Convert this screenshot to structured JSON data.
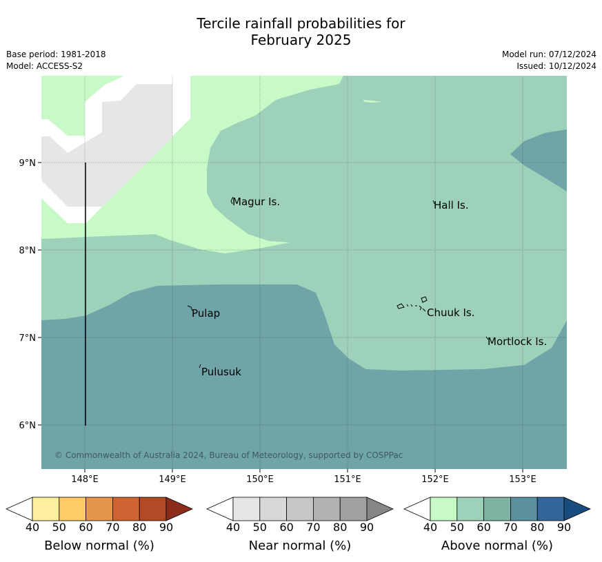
{
  "header": {
    "title_line1": "Tercile rainfall probabilities for",
    "title_line2": "February 2025",
    "base_period": "Base period: 1981-2018",
    "model": "Model: ACCESS-S2",
    "model_run": "Model run: 07/12/2024",
    "issued": "Issued: 10/12/2024"
  },
  "map": {
    "lat_labels": [
      "9°N",
      "8°N",
      "7°N",
      "6°N"
    ],
    "lon_labels": [
      "148°E",
      "149°E",
      "150°E",
      "151°E",
      "152°E",
      "153°E"
    ],
    "places": [
      "Magur Is.",
      "Hall Is.",
      "Pulap",
      "Chuuk Is.",
      "Mortlock Is.",
      "Pulusuk"
    ],
    "copyright": "© Commonwealth of Australia 2024, Bureau of Meteorology, supported by COSPPac",
    "colors": {
      "near_normal_40": "#e6e6e6",
      "above_normal_40": "#c8fac8",
      "above_normal_50": "#9dd1b9",
      "above_normal_70": "#6fa4a8"
    }
  },
  "colorbars": [
    {
      "label": "Below normal (%)",
      "ticks": [
        "40",
        "50",
        "60",
        "70",
        "80",
        "90"
      ],
      "colors": [
        "#ffffff",
        "#ffee9e",
        "#ffcc66",
        "#e3964a",
        "#cf6432",
        "#b24a26",
        "#8b2d1a"
      ]
    },
    {
      "label": "Near normal (%)",
      "ticks": [
        "40",
        "50",
        "60",
        "70",
        "80",
        "90"
      ],
      "colors": [
        "#ffffff",
        "#e6e6e6",
        "#d8d8d8",
        "#c6c6c6",
        "#b2b2b2",
        "#a0a0a0",
        "#868686"
      ]
    },
    {
      "label": "Above normal (%)",
      "ticks": [
        "40",
        "50",
        "60",
        "70",
        "80",
        "90"
      ],
      "colors": [
        "#ffffff",
        "#c8fac8",
        "#9dd1b9",
        "#7fb4a4",
        "#5b909e",
        "#336699",
        "#184c7e"
      ]
    }
  ]
}
